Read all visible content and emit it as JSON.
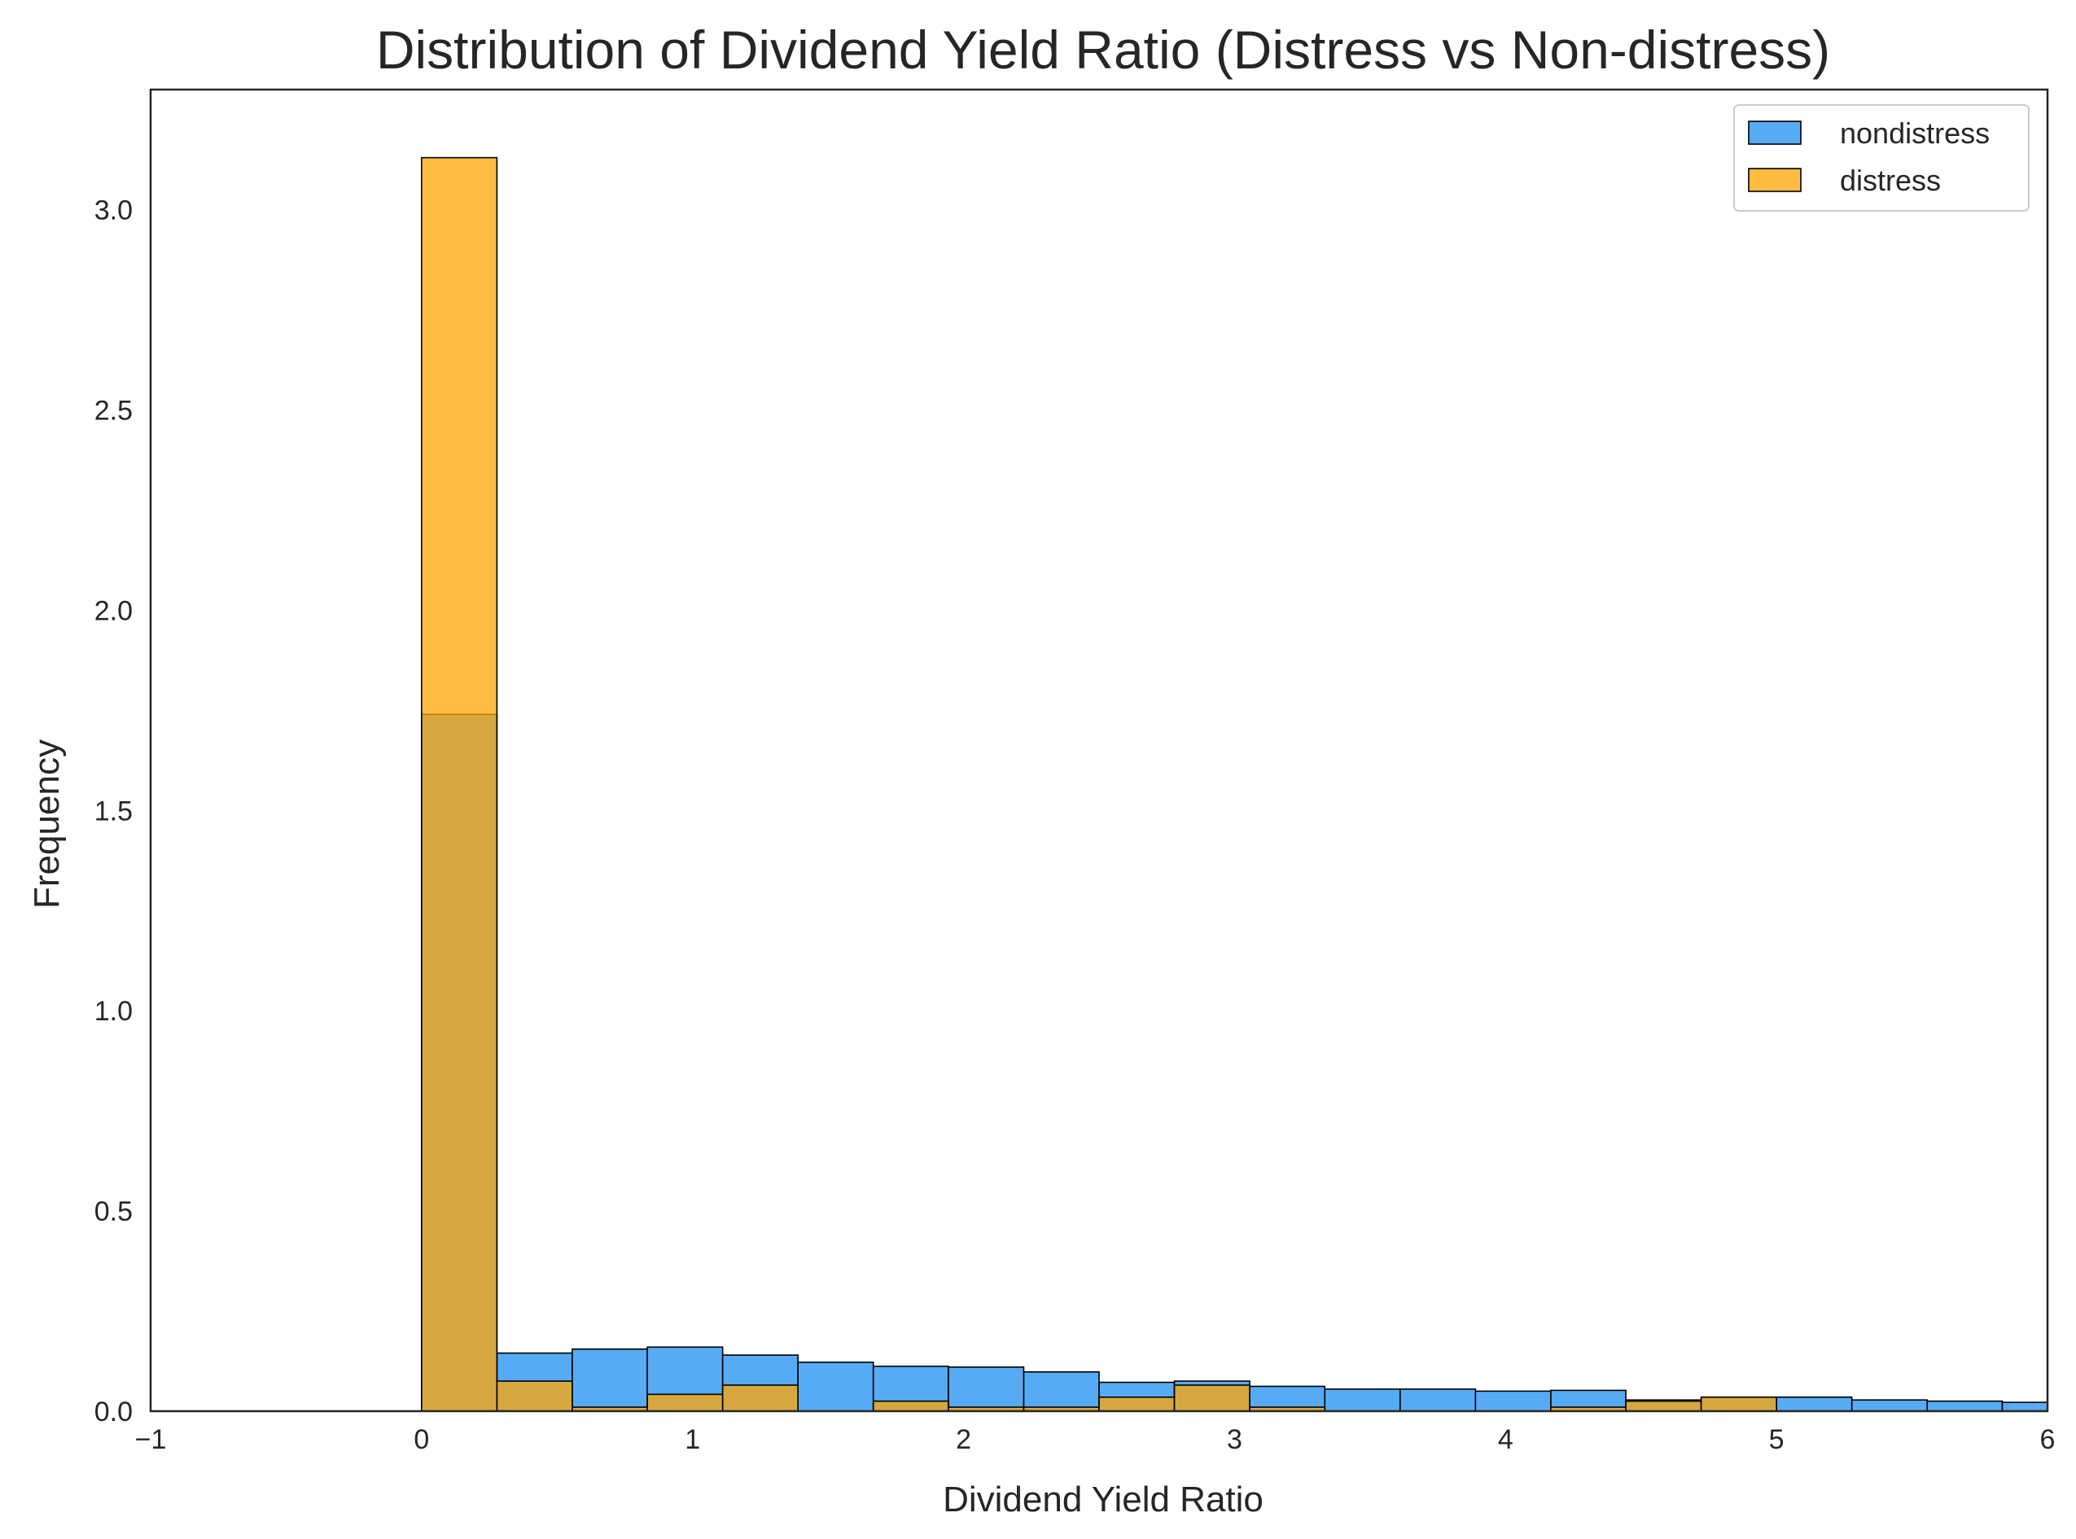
{
  "chart_data": {
    "type": "bar",
    "title": "Distribution of Dividend Yield Ratio (Distress vs Non-distress)",
    "xlabel": "Dividend Yield Ratio",
    "ylabel": "Frequency",
    "xlim": [
      -1,
      6
    ],
    "ylim": [
      0,
      3.3
    ],
    "xticks": [
      "−1",
      "0",
      "1",
      "2",
      "3",
      "4",
      "5",
      "6"
    ],
    "xtick_values": [
      -1,
      0,
      1,
      2,
      3,
      4,
      5,
      6
    ],
    "yticks": [
      "0.0",
      "0.5",
      "1.0",
      "1.5",
      "2.0",
      "2.5",
      "3.0"
    ],
    "ytick_values": [
      0,
      0.5,
      1.0,
      1.5,
      2.0,
      2.5,
      3.0
    ],
    "grid": false,
    "legend_position": "top-right",
    "bin_edges": [
      0,
      0.278,
      0.556,
      0.833,
      1.111,
      1.389,
      1.667,
      1.944,
      2.222,
      2.5,
      2.778,
      3.056,
      3.333,
      3.611,
      3.889,
      4.167,
      4.444,
      4.722,
      5.0,
      5.278,
      5.556,
      5.833,
      6.0
    ],
    "series": [
      {
        "name": "nondistress",
        "color": "#1f8ff2",
        "values": [
          1.74,
          0.145,
          0.155,
          0.16,
          0.14,
          0.122,
          0.112,
          0.11,
          0.098,
          0.072,
          0.075,
          0.062,
          0.055,
          0.055,
          0.05,
          0.052,
          0.028,
          0.035,
          0.035,
          0.028,
          0.025,
          0.022
        ]
      },
      {
        "name": "distress",
        "color": "#ffa500",
        "values": [
          3.13,
          0.075,
          0.01,
          0.042,
          0.065,
          0.0,
          0.025,
          0.01,
          0.01,
          0.035,
          0.065,
          0.01,
          0.0,
          0.0,
          0.0,
          0.01,
          0.025,
          0.035,
          0.0,
          0.0,
          0.0,
          0.0
        ]
      }
    ]
  }
}
